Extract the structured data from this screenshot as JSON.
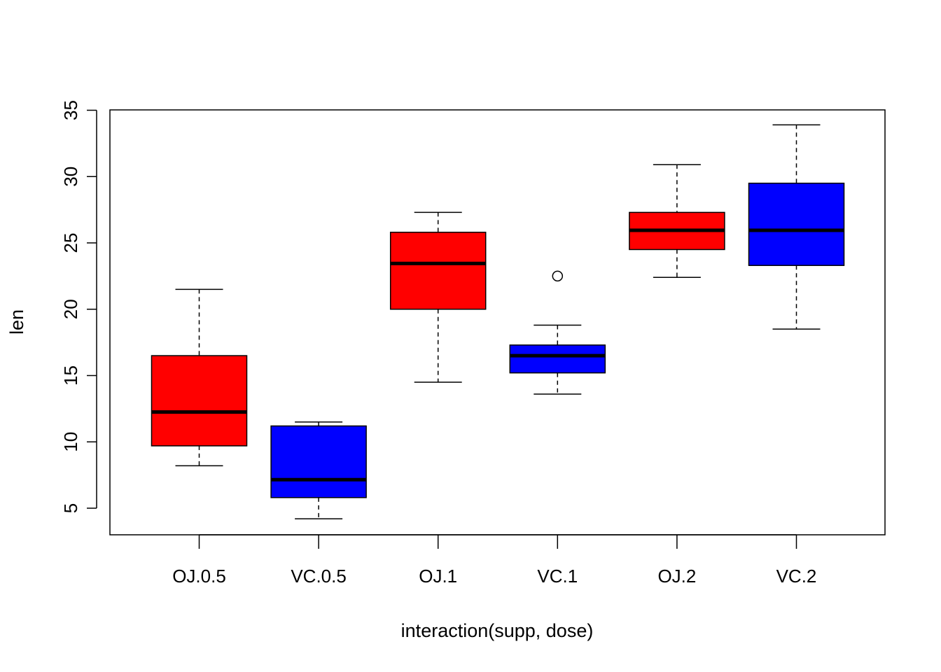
{
  "chart_data": {
    "type": "boxplot",
    "title": "",
    "xlabel": "interaction(supp, dose)",
    "ylabel": "len",
    "ylim": [
      3,
      35
    ],
    "yticks": [
      5,
      10,
      15,
      20,
      25,
      30,
      35
    ],
    "grid": false,
    "legend": "none",
    "categories": [
      "OJ.0.5",
      "VC.0.5",
      "OJ.1",
      "VC.1",
      "OJ.2",
      "VC.2"
    ],
    "boxes": [
      {
        "label": "OJ.0.5",
        "whisker_low": 8.2,
        "q1": 9.7,
        "median": 12.25,
        "q3": 16.5,
        "whisker_high": 21.5,
        "outliers": [],
        "color": "#ff0000"
      },
      {
        "label": "VC.0.5",
        "whisker_low": 4.2,
        "q1": 5.8,
        "median": 7.15,
        "q3": 11.2,
        "whisker_high": 11.5,
        "outliers": [],
        "color": "#0000ff"
      },
      {
        "label": "OJ.1",
        "whisker_low": 14.5,
        "q1": 20.0,
        "median": 23.45,
        "q3": 25.8,
        "whisker_high": 27.3,
        "outliers": [],
        "color": "#ff0000"
      },
      {
        "label": "VC.1",
        "whisker_low": 13.6,
        "q1": 15.2,
        "median": 16.5,
        "q3": 17.3,
        "whisker_high": 18.8,
        "outliers": [
          22.5
        ],
        "color": "#0000ff"
      },
      {
        "label": "OJ.2",
        "whisker_low": 22.4,
        "q1": 24.5,
        "median": 25.95,
        "q3": 27.3,
        "whisker_high": 30.9,
        "outliers": [],
        "color": "#ff0000"
      },
      {
        "label": "VC.2",
        "whisker_low": 18.5,
        "q1": 23.3,
        "median": 25.95,
        "q3": 29.5,
        "whisker_high": 33.9,
        "outliers": [],
        "color": "#0000ff"
      }
    ]
  }
}
